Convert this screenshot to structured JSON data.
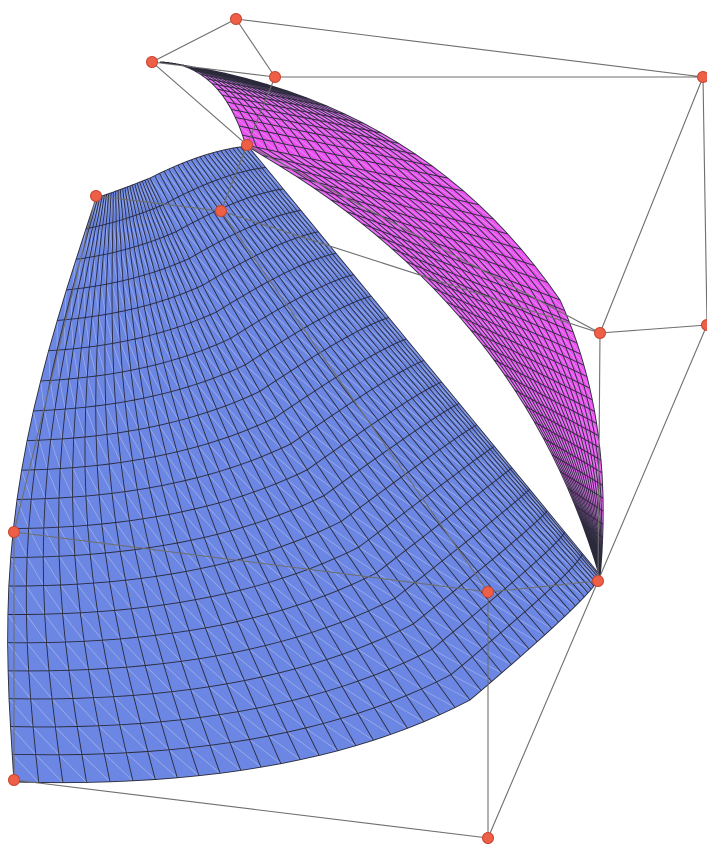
{
  "colors": {
    "background": "#ffffff",
    "front_face": "#6b87e3",
    "top_face": "#ee4ff0",
    "mesh_line": "#2a2a3a",
    "diag_line": "#c9d2f2",
    "cage_line": "#6e6e6e",
    "control_point_fill": "#ee5f48",
    "control_point_stroke": "#c8462f"
  },
  "mesh": {
    "radial_divisions": 20,
    "angular_divisions": 46
  },
  "control_points_count": 14,
  "cage_edges_count": 24
}
